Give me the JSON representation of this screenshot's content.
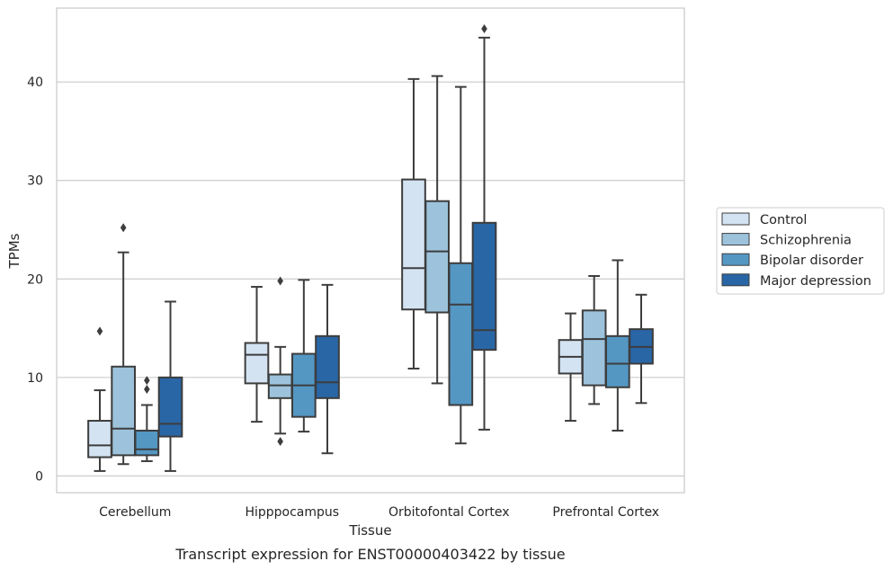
{
  "chart_data": {
    "type": "box",
    "caption": "Transcript expression for ENST00000403422 by tissue",
    "xlabel": "Tissue",
    "ylabel": "TPMs",
    "ylim": [
      -1.7,
      47.5
    ],
    "yticks": [
      0,
      10,
      20,
      30,
      40
    ],
    "grid": "horizontal",
    "legend_position": "right",
    "categories": [
      "Cerebellum",
      "Hipppocampus",
      "Orbitofontal Cortex",
      "Prefrontal Cortex"
    ],
    "series": [
      {
        "name": "Control",
        "color": "#d3e3f2",
        "boxes": [
          {
            "min": 0.5,
            "q1": 1.9,
            "median": 3.1,
            "q3": 5.6,
            "max": 8.7,
            "outliers": [
              14.7
            ]
          },
          {
            "min": 5.5,
            "q1": 9.4,
            "median": 12.3,
            "q3": 13.5,
            "max": 19.2,
            "outliers": []
          },
          {
            "min": 10.9,
            "q1": 16.9,
            "median": 21.1,
            "q3": 30.1,
            "max": 40.3,
            "outliers": []
          },
          {
            "min": 5.6,
            "q1": 10.4,
            "median": 12.1,
            "q3": 13.8,
            "max": 16.5,
            "outliers": []
          }
        ]
      },
      {
        "name": "Schizophrenia",
        "color": "#9dc3dc",
        "boxes": [
          {
            "min": 1.2,
            "q1": 2.1,
            "median": 4.8,
            "q3": 11.1,
            "max": 22.7,
            "outliers": [
              25.2
            ]
          },
          {
            "min": 4.3,
            "q1": 7.9,
            "median": 9.2,
            "q3": 10.3,
            "max": 13.1,
            "outliers": [
              19.8,
              3.5
            ]
          },
          {
            "min": 9.4,
            "q1": 16.6,
            "median": 22.8,
            "q3": 27.9,
            "max": 40.6,
            "outliers": []
          },
          {
            "min": 7.3,
            "q1": 9.2,
            "median": 13.9,
            "q3": 16.8,
            "max": 20.3,
            "outliers": []
          }
        ]
      },
      {
        "name": "Bipolar disorder",
        "color": "#5497c3",
        "boxes": [
          {
            "min": 1.5,
            "q1": 2.1,
            "median": 2.7,
            "q3": 4.6,
            "max": 7.2,
            "outliers": [
              9.7,
              8.8
            ]
          },
          {
            "min": 4.5,
            "q1": 6.0,
            "median": 9.2,
            "q3": 12.4,
            "max": 19.9,
            "outliers": []
          },
          {
            "min": 3.3,
            "q1": 7.2,
            "median": 17.4,
            "q3": 21.6,
            "max": 39.5,
            "outliers": []
          },
          {
            "min": 4.6,
            "q1": 9.0,
            "median": 11.4,
            "q3": 14.2,
            "max": 21.9,
            "outliers": []
          }
        ]
      },
      {
        "name": "Major depression",
        "color": "#2966a6",
        "boxes": [
          {
            "min": 0.5,
            "q1": 4.0,
            "median": 5.3,
            "q3": 10.0,
            "max": 17.7,
            "outliers": []
          },
          {
            "min": 2.3,
            "q1": 7.9,
            "median": 9.5,
            "q3": 14.2,
            "max": 19.4,
            "outliers": []
          },
          {
            "min": 4.7,
            "q1": 12.8,
            "median": 14.8,
            "q3": 25.7,
            "max": 44.5,
            "outliers": [
              45.4
            ]
          },
          {
            "min": 7.4,
            "q1": 11.4,
            "median": 13.1,
            "q3": 14.9,
            "max": 18.4,
            "outliers": []
          }
        ]
      }
    ]
  }
}
